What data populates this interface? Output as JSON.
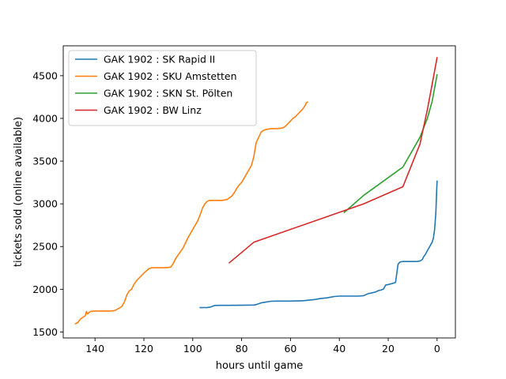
{
  "chart_data": {
    "type": "line",
    "title": "",
    "xlabel": "hours until game",
    "ylabel": "tickets sold (online available)",
    "x_inverted": true,
    "xlim": [
      153,
      -7.5
    ],
    "ylim": [
      1430,
      4850
    ],
    "xticks": [
      140,
      120,
      100,
      80,
      60,
      40,
      20,
      0
    ],
    "yticks": [
      1500,
      2000,
      2500,
      3000,
      3500,
      4000,
      4500
    ],
    "grid": false,
    "legend_position": "upper-left",
    "series": [
      {
        "name": "GAK 1902 : SK Rapid II",
        "color": "#1f77b4",
        "x": [
          97,
          94,
          93,
          91,
          89,
          85,
          80,
          75,
          74,
          72,
          71,
          68,
          65,
          62,
          60,
          55,
          50,
          48,
          45,
          42,
          40,
          38,
          35,
          32,
          30,
          28,
          27,
          25,
          24,
          23,
          22,
          21,
          20,
          18,
          17,
          16,
          15.5,
          15,
          14,
          12,
          11,
          10,
          9,
          8,
          7,
          6,
          5.5,
          5,
          4,
          3,
          2,
          1.5,
          1,
          0.5,
          0.3,
          0
        ],
        "y": [
          1785,
          1787,
          1790,
          1810,
          1812,
          1812,
          1813,
          1815,
          1820,
          1840,
          1845,
          1860,
          1862,
          1862,
          1862,
          1865,
          1880,
          1890,
          1900,
          1915,
          1920,
          1920,
          1920,
          1920,
          1925,
          1950,
          1955,
          1970,
          1985,
          1990,
          2000,
          2050,
          2055,
          2070,
          2080,
          2290,
          2310,
          2320,
          2325,
          2325,
          2325,
          2325,
          2325,
          2326,
          2330,
          2350,
          2380,
          2400,
          2450,
          2500,
          2550,
          2600,
          2700,
          2900,
          3050,
          3265
        ]
      },
      {
        "name": "GAK 1902 : SKU Amstetten",
        "color": "#ff7f0e",
        "x": [
          148,
          147,
          146,
          145,
          144,
          143.5,
          143,
          142,
          140,
          138,
          136,
          134,
          132,
          130,
          129,
          128,
          127,
          126,
          125,
          124,
          123,
          122,
          121,
          120,
          119,
          118,
          117,
          115,
          113,
          111,
          110,
          109,
          108,
          107,
          106,
          105,
          104,
          103,
          102,
          101,
          100,
          99,
          98,
          97,
          96,
          95,
          94,
          93,
          92,
          91,
          90,
          88,
          86,
          84,
          83,
          82,
          81,
          80,
          79,
          78,
          77,
          76,
          75,
          74,
          73,
          72,
          71,
          70,
          68,
          66,
          64,
          63,
          62,
          61,
          60,
          59,
          58,
          57,
          56,
          55,
          54,
          53.5,
          53
        ],
        "y": [
          1595,
          1610,
          1650,
          1670,
          1690,
          1740,
          1710,
          1740,
          1745,
          1745,
          1745,
          1745,
          1750,
          1780,
          1800,
          1850,
          1930,
          1980,
          2000,
          2060,
          2100,
          2130,
          2160,
          2190,
          2215,
          2240,
          2250,
          2252,
          2252,
          2252,
          2255,
          2260,
          2300,
          2360,
          2400,
          2440,
          2480,
          2540,
          2600,
          2650,
          2700,
          2750,
          2800,
          2870,
          2950,
          3000,
          3030,
          3040,
          3040,
          3040,
          3040,
          3040,
          3050,
          3090,
          3130,
          3180,
          3220,
          3250,
          3300,
          3350,
          3400,
          3450,
          3550,
          3720,
          3780,
          3840,
          3860,
          3870,
          3880,
          3880,
          3885,
          3890,
          3910,
          3940,
          3970,
          4000,
          4020,
          4050,
          4080,
          4110,
          4150,
          4185,
          4190
        ]
      },
      {
        "name": "GAK 1902 : SKN St. Pölten",
        "color": "#2ca02c",
        "x": [
          38,
          30,
          14,
          7,
          4,
          2,
          0
        ],
        "y": [
          2900,
          3100,
          3430,
          3780,
          4000,
          4200,
          4510
        ]
      },
      {
        "name": "GAK 1902 : BW Linz",
        "color": "#d62728",
        "x": [
          85,
          75,
          30,
          14,
          7,
          4,
          2,
          0
        ],
        "y": [
          2310,
          2550,
          3000,
          3200,
          3700,
          4100,
          4400,
          4710
        ]
      }
    ]
  }
}
